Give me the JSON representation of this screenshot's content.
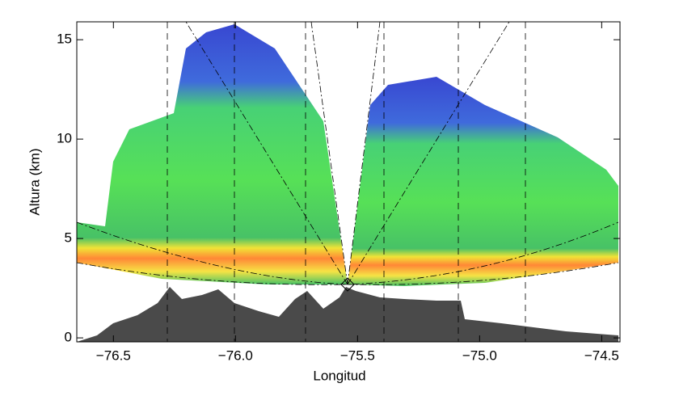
{
  "chart_data": {
    "type": "rhi",
    "x_label": "Longitud",
    "y_label": "Altura (km)",
    "xlim": [
      -76.65,
      -74.425
    ],
    "ylim": [
      -0.2,
      15.9
    ],
    "xticks": [
      {
        "value": -76.5,
        "label": "−76.5"
      },
      {
        "value": -76,
        "label": "−76.0"
      },
      {
        "value": -75.5,
        "label": "−75.5"
      },
      {
        "value": -75,
        "label": "−75.0"
      },
      {
        "value": -74.5,
        "label": "−74.5"
      }
    ],
    "yticks": [
      0,
      5,
      10,
      15
    ]
  }
}
